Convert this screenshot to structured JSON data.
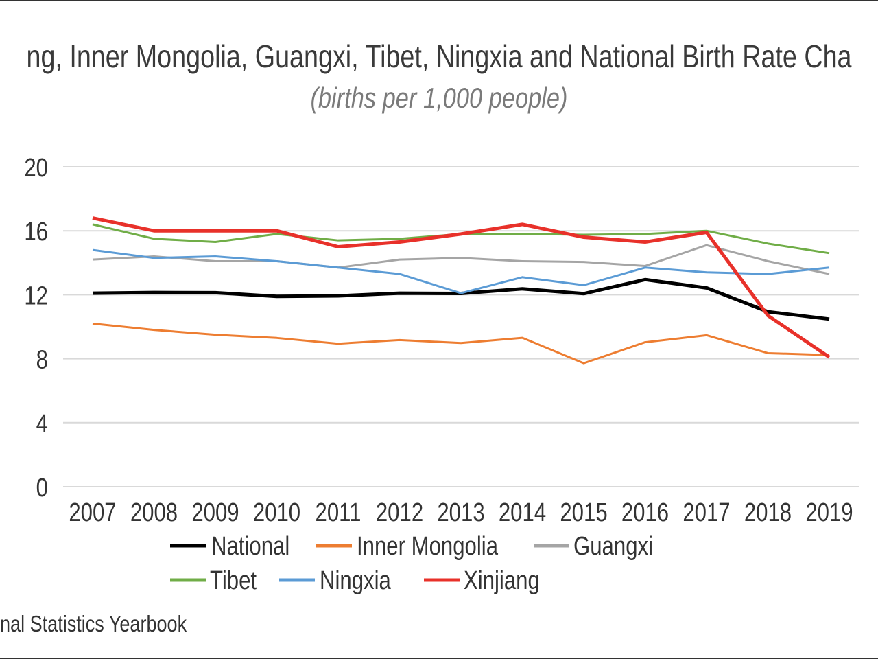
{
  "chart_data": {
    "type": "line",
    "title": "ng, Inner Mongolia, Guangxi, Tibet, Ningxia and National Birth Rate Cha",
    "subtitle": "(births per 1,000 people)",
    "source": "nal Statistics Yearbook",
    "xlabel": "",
    "ylabel": "",
    "ylim": [
      0,
      20
    ],
    "yticks": [
      "0",
      "4",
      "8",
      "12",
      "16",
      "20"
    ],
    "grid": true,
    "legend_position": "bottom",
    "categories": [
      "2007",
      "2008",
      "2009",
      "2010",
      "2011",
      "2012",
      "2013",
      "2014",
      "2015",
      "2016",
      "2017",
      "2018",
      "2019"
    ],
    "series": [
      {
        "name": "National",
        "color": "#000000",
        "values": [
          12.1,
          12.14,
          12.13,
          11.9,
          11.93,
          12.1,
          12.08,
          12.37,
          12.07,
          12.95,
          12.43,
          10.94,
          10.48
        ]
      },
      {
        "name": "Inner Mongolia",
        "color": "#ED7D31",
        "values": [
          10.2,
          9.8,
          9.5,
          9.3,
          8.94,
          9.17,
          8.98,
          9.31,
          7.72,
          9.03,
          9.47,
          8.35,
          8.23
        ]
      },
      {
        "name": "Guangxi",
        "color": "#A5A5A5",
        "values": [
          14.2,
          14.4,
          14.1,
          14.1,
          13.7,
          14.2,
          14.3,
          14.1,
          14.05,
          13.8,
          15.1,
          14.1,
          13.3
        ]
      },
      {
        "name": "Tibet",
        "color": "#70AD47",
        "values": [
          16.4,
          15.5,
          15.3,
          15.8,
          15.4,
          15.5,
          15.8,
          15.8,
          15.75,
          15.8,
          16.0,
          15.2,
          14.6
        ]
      },
      {
        "name": "Ningxia",
        "color": "#5B9BD5",
        "values": [
          14.8,
          14.3,
          14.4,
          14.1,
          13.7,
          13.3,
          12.1,
          13.1,
          12.6,
          13.7,
          13.4,
          13.3,
          13.7
        ]
      },
      {
        "name": "Xinjiang",
        "color": "#E8312A",
        "values": [
          16.8,
          16.0,
          16.0,
          16.0,
          15.0,
          15.3,
          15.8,
          16.4,
          15.6,
          15.3,
          15.9,
          10.7,
          8.1
        ]
      }
    ]
  }
}
